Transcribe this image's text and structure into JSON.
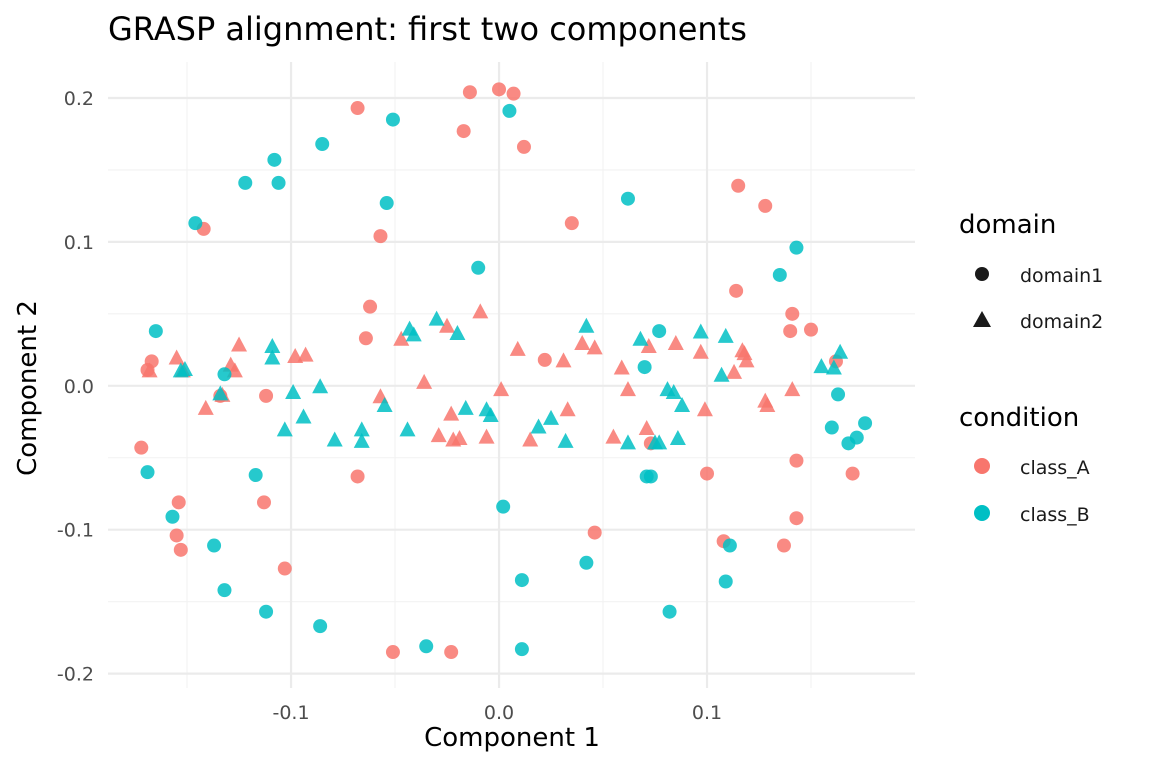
{
  "chart_data": {
    "type": "scatter",
    "title": "GRASP alignment: first two components",
    "xlabel": "Component 1",
    "ylabel": "Component 2",
    "xlim": [
      -0.188,
      0.2
    ],
    "ylim": [
      -0.21,
      0.225
    ],
    "x_ticks": [
      -0.1,
      0.0,
      0.1
    ],
    "x_tick_labels": [
      "-0.1",
      "0.0",
      "0.1"
    ],
    "y_ticks": [
      -0.2,
      -0.1,
      0.0,
      0.1,
      0.2
    ],
    "y_tick_labels": [
      "-0.2",
      "-0.1",
      "0.0",
      "0.1",
      "0.2"
    ],
    "grid": true,
    "legend_position": "right",
    "legends": [
      {
        "title": "domain",
        "entries": [
          {
            "label": "domain1",
            "shape": "circle"
          },
          {
            "label": "domain2",
            "shape": "triangle"
          }
        ]
      },
      {
        "title": "condition",
        "entries": [
          {
            "label": "class_A",
            "color": "#F8766D"
          },
          {
            "label": "class_B",
            "color": "#00BFC4"
          }
        ]
      }
    ],
    "colors": {
      "class_A": "#F8766D",
      "class_B": "#00BFC4"
    },
    "shapes": {
      "domain1": "circle",
      "domain2": "triangle"
    },
    "series": [
      {
        "name": "class_A / domain1",
        "condition": "class_A",
        "domain": "domain1",
        "points": [
          [
            -0.172,
            -0.043
          ],
          [
            -0.169,
            0.011
          ],
          [
            -0.167,
            0.017
          ],
          [
            -0.155,
            -0.104
          ],
          [
            -0.154,
            -0.081
          ],
          [
            -0.153,
            -0.114
          ],
          [
            -0.142,
            0.109
          ],
          [
            -0.134,
            -0.007
          ],
          [
            -0.113,
            -0.081
          ],
          [
            -0.112,
            -0.007
          ],
          [
            -0.103,
            -0.127
          ],
          [
            -0.068,
            0.193
          ],
          [
            -0.068,
            -0.063
          ],
          [
            -0.064,
            0.033
          ],
          [
            -0.062,
            0.055
          ],
          [
            -0.057,
            0.104
          ],
          [
            -0.051,
            -0.185
          ],
          [
            -0.023,
            -0.185
          ],
          [
            -0.017,
            0.177
          ],
          [
            -0.014,
            0.204
          ],
          [
            0.0,
            0.206
          ],
          [
            0.007,
            0.203
          ],
          [
            0.012,
            0.166
          ],
          [
            0.022,
            0.018
          ],
          [
            0.035,
            0.113
          ],
          [
            0.046,
            -0.102
          ],
          [
            0.073,
            -0.04
          ],
          [
            0.1,
            -0.061
          ],
          [
            0.108,
            -0.108
          ],
          [
            0.115,
            0.139
          ],
          [
            0.114,
            0.066
          ],
          [
            0.128,
            0.125
          ],
          [
            0.137,
            -0.111
          ],
          [
            0.141,
            0.05
          ],
          [
            0.14,
            0.038
          ],
          [
            0.143,
            -0.052
          ],
          [
            0.143,
            -0.092
          ],
          [
            0.15,
            0.039
          ],
          [
            0.162,
            0.017
          ],
          [
            0.17,
            -0.061
          ]
        ]
      },
      {
        "name": "class_A / domain2",
        "condition": "class_A",
        "domain": "domain2",
        "points": [
          [
            -0.168,
            0.01
          ],
          [
            -0.155,
            0.019
          ],
          [
            -0.152,
            0.01
          ],
          [
            -0.141,
            -0.016
          ],
          [
            -0.133,
            -0.007
          ],
          [
            -0.129,
            0.014
          ],
          [
            -0.127,
            0.01
          ],
          [
            -0.125,
            0.028
          ],
          [
            -0.098,
            0.02
          ],
          [
            -0.093,
            0.021
          ],
          [
            -0.057,
            -0.008
          ],
          [
            -0.047,
            0.032
          ],
          [
            -0.036,
            0.002
          ],
          [
            -0.029,
            -0.035
          ],
          [
            -0.025,
            0.041
          ],
          [
            -0.023,
            -0.02
          ],
          [
            -0.022,
            -0.038
          ],
          [
            -0.019,
            -0.037
          ],
          [
            -0.009,
            0.051
          ],
          [
            -0.006,
            -0.036
          ],
          [
            0.001,
            -0.003
          ],
          [
            0.009,
            0.025
          ],
          [
            0.015,
            -0.038
          ],
          [
            0.031,
            0.017
          ],
          [
            0.033,
            -0.017
          ],
          [
            0.04,
            0.029
          ],
          [
            0.046,
            0.026
          ],
          [
            0.055,
            -0.036
          ],
          [
            0.059,
            0.012
          ],
          [
            0.062,
            -0.003
          ],
          [
            0.071,
            -0.03
          ],
          [
            0.072,
            0.027
          ],
          [
            0.085,
            0.029
          ],
          [
            0.097,
            0.023
          ],
          [
            0.099,
            -0.017
          ],
          [
            0.113,
            0.009
          ],
          [
            0.117,
            0.024
          ],
          [
            0.118,
            0.022
          ],
          [
            0.119,
            0.017
          ],
          [
            0.128,
            -0.011
          ],
          [
            0.129,
            -0.014
          ],
          [
            0.141,
            -0.003
          ]
        ]
      },
      {
        "name": "class_B / domain1",
        "condition": "class_B",
        "domain": "domain1",
        "points": [
          [
            -0.165,
            0.038
          ],
          [
            -0.169,
            -0.06
          ],
          [
            -0.157,
            -0.091
          ],
          [
            -0.146,
            0.113
          ],
          [
            -0.137,
            -0.111
          ],
          [
            -0.132,
            0.008
          ],
          [
            -0.132,
            -0.142
          ],
          [
            -0.122,
            0.141
          ],
          [
            -0.117,
            -0.062
          ],
          [
            -0.112,
            -0.157
          ],
          [
            -0.108,
            0.157
          ],
          [
            -0.106,
            0.141
          ],
          [
            -0.085,
            0.168
          ],
          [
            -0.086,
            -0.167
          ],
          [
            -0.054,
            0.127
          ],
          [
            -0.051,
            0.185
          ],
          [
            -0.035,
            -0.181
          ],
          [
            -0.01,
            0.082
          ],
          [
            0.005,
            0.191
          ],
          [
            0.002,
            -0.084
          ],
          [
            0.011,
            -0.135
          ],
          [
            0.011,
            -0.183
          ],
          [
            0.042,
            -0.123
          ],
          [
            0.062,
            0.13
          ],
          [
            0.07,
            0.013
          ],
          [
            0.071,
            -0.063
          ],
          [
            0.073,
            -0.063
          ],
          [
            0.077,
            0.038
          ],
          [
            0.082,
            -0.157
          ],
          [
            0.109,
            -0.136
          ],
          [
            0.111,
            -0.111
          ],
          [
            0.135,
            0.077
          ],
          [
            0.143,
            0.096
          ],
          [
            0.16,
            -0.029
          ],
          [
            0.163,
            -0.006
          ],
          [
            0.168,
            -0.04
          ],
          [
            0.172,
            -0.036
          ],
          [
            0.176,
            -0.026
          ]
        ]
      },
      {
        "name": "class_B / domain2",
        "condition": "class_B",
        "domain": "domain2",
        "points": [
          [
            -0.153,
            0.01
          ],
          [
            -0.151,
            0.011
          ],
          [
            -0.134,
            -0.006
          ],
          [
            -0.109,
            0.027
          ],
          [
            -0.109,
            0.019
          ],
          [
            -0.103,
            -0.031
          ],
          [
            -0.099,
            -0.005
          ],
          [
            -0.094,
            -0.022
          ],
          [
            -0.086,
            -0.001
          ],
          [
            -0.079,
            -0.038
          ],
          [
            -0.066,
            -0.031
          ],
          [
            -0.066,
            -0.039
          ],
          [
            -0.055,
            -0.014
          ],
          [
            -0.044,
            -0.031
          ],
          [
            -0.043,
            0.039
          ],
          [
            -0.041,
            0.035
          ],
          [
            -0.03,
            0.046
          ],
          [
            -0.02,
            0.036
          ],
          [
            -0.016,
            -0.016
          ],
          [
            -0.006,
            -0.017
          ],
          [
            -0.004,
            -0.021
          ],
          [
            0.019,
            -0.029
          ],
          [
            0.025,
            -0.023
          ],
          [
            0.032,
            -0.039
          ],
          [
            0.042,
            0.041
          ],
          [
            0.062,
            -0.04
          ],
          [
            0.068,
            0.032
          ],
          [
            0.075,
            -0.04
          ],
          [
            0.077,
            -0.04
          ],
          [
            0.081,
            -0.003
          ],
          [
            0.084,
            -0.005
          ],
          [
            0.086,
            -0.037
          ],
          [
            0.088,
            -0.014
          ],
          [
            0.097,
            0.037
          ],
          [
            0.107,
            0.007
          ],
          [
            0.109,
            0.034
          ],
          [
            0.155,
            0.013
          ],
          [
            0.161,
            0.012
          ],
          [
            0.164,
            0.023
          ]
        ]
      }
    ]
  }
}
